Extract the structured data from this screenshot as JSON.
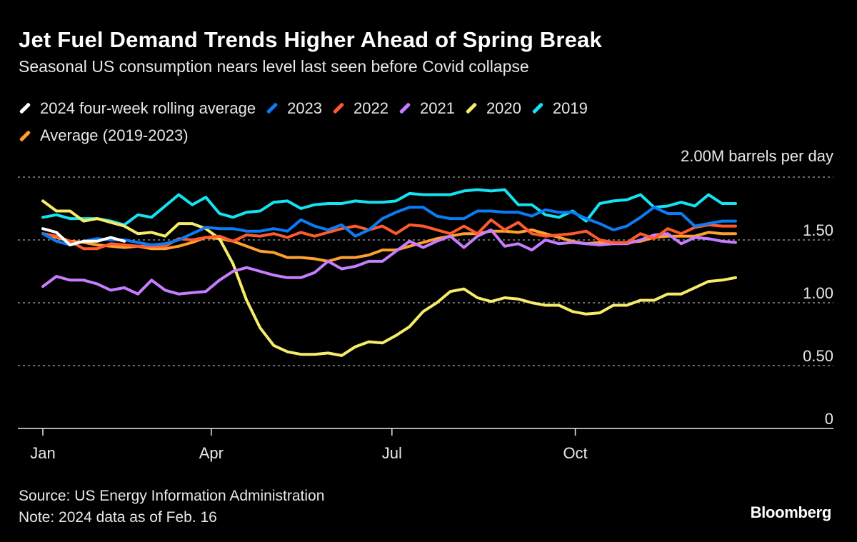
{
  "header": {
    "title": "Jet Fuel Demand Trends Higher Ahead of Spring Break",
    "subtitle": "Seasonal US consumption nears level last seen before Covid collapse"
  },
  "footer": {
    "source": "Source: US Energy Information Administration",
    "note": "Note: 2024 data as of Feb. 16",
    "logo": "Bloomberg"
  },
  "chart_data": {
    "type": "line",
    "title": "Jet Fuel Demand Trends Higher Ahead of Spring Break",
    "subtitle": "Seasonal US consumption nears level last seen before Covid collapse",
    "unit_label": "2.00M barrels per day",
    "ylim": [
      0,
      2.0
    ],
    "y_ticks": [
      {
        "value": 0,
        "label": "0"
      },
      {
        "value": 0.5,
        "label": "0.50"
      },
      {
        "value": 1.0,
        "label": "1.00"
      },
      {
        "value": 1.5,
        "label": "1.50"
      }
    ],
    "x_ticks": [
      {
        "week": 1,
        "label": "Jan"
      },
      {
        "week": 13.4,
        "label": "Apr"
      },
      {
        "week": 26.7,
        "label": "Jul"
      },
      {
        "week": 40.2,
        "label": "Oct"
      }
    ],
    "xlim": [
      1,
      52
    ],
    "grid": "horizontal dotted",
    "legend_position": "top",
    "series": [
      {
        "name": "2024 four-week rolling average",
        "color": "#ffffff",
        "values": [
          1.59,
          1.56,
          1.46,
          1.49,
          1.49,
          1.52,
          1.49
        ]
      },
      {
        "name": "2023",
        "color": "#0a7cf5",
        "values": [
          1.55,
          1.49,
          1.46,
          1.49,
          1.51,
          1.5,
          1.5,
          1.48,
          1.46,
          1.47,
          1.5,
          1.55,
          1.6,
          1.59,
          1.59,
          1.57,
          1.57,
          1.59,
          1.57,
          1.66,
          1.61,
          1.58,
          1.62,
          1.53,
          1.58,
          1.67,
          1.72,
          1.76,
          1.76,
          1.69,
          1.67,
          1.67,
          1.73,
          1.73,
          1.72,
          1.72,
          1.69,
          1.74,
          1.72,
          1.72,
          1.67,
          1.63,
          1.58,
          1.61,
          1.68,
          1.76,
          1.71,
          1.71,
          1.61,
          1.63,
          1.65,
          1.65
        ]
      },
      {
        "name": "2022",
        "color": "#ff5a2e",
        "values": [
          1.55,
          1.53,
          1.49,
          1.43,
          1.43,
          1.47,
          1.46,
          1.45,
          1.45,
          1.45,
          1.51,
          1.5,
          1.52,
          1.53,
          1.49,
          1.54,
          1.53,
          1.55,
          1.52,
          1.56,
          1.53,
          1.56,
          1.59,
          1.61,
          1.58,
          1.61,
          1.55,
          1.62,
          1.61,
          1.58,
          1.55,
          1.61,
          1.55,
          1.66,
          1.58,
          1.64,
          1.55,
          1.53,
          1.54,
          1.55,
          1.57,
          1.5,
          1.48,
          1.48,
          1.55,
          1.51,
          1.59,
          1.55,
          1.6,
          1.62,
          1.61,
          1.61
        ]
      },
      {
        "name": "2021",
        "color": "#c77dff",
        "values": [
          1.13,
          1.21,
          1.18,
          1.18,
          1.15,
          1.1,
          1.12,
          1.07,
          1.18,
          1.1,
          1.07,
          1.08,
          1.09,
          1.18,
          1.25,
          1.28,
          1.25,
          1.22,
          1.2,
          1.2,
          1.24,
          1.33,
          1.27,
          1.29,
          1.33,
          1.33,
          1.41,
          1.49,
          1.44,
          1.49,
          1.53,
          1.44,
          1.53,
          1.58,
          1.45,
          1.47,
          1.42,
          1.5,
          1.47,
          1.48,
          1.47,
          1.46,
          1.47,
          1.47,
          1.5,
          1.54,
          1.55,
          1.47,
          1.52,
          1.51,
          1.49,
          1.48
        ]
      },
      {
        "name": "2020",
        "color": "#f5ec6a",
        "values": [
          1.81,
          1.73,
          1.73,
          1.65,
          1.67,
          1.64,
          1.61,
          1.55,
          1.56,
          1.53,
          1.63,
          1.63,
          1.59,
          1.51,
          1.31,
          1.02,
          0.8,
          0.66,
          0.61,
          0.59,
          0.59,
          0.6,
          0.58,
          0.65,
          0.69,
          0.68,
          0.74,
          0.81,
          0.93,
          1.0,
          1.09,
          1.11,
          1.04,
          1.01,
          1.04,
          1.03,
          1.0,
          0.98,
          0.98,
          0.93,
          0.91,
          0.92,
          0.98,
          0.98,
          1.02,
          1.02,
          1.07,
          1.07,
          1.12,
          1.17,
          1.18,
          1.2
        ]
      },
      {
        "name": "2019",
        "color": "#13e3f2",
        "values": [
          1.68,
          1.7,
          1.67,
          1.67,
          1.67,
          1.65,
          1.62,
          1.7,
          1.68,
          1.77,
          1.86,
          1.78,
          1.84,
          1.71,
          1.68,
          1.72,
          1.73,
          1.8,
          1.81,
          1.75,
          1.78,
          1.79,
          1.79,
          1.81,
          1.8,
          1.8,
          1.81,
          1.87,
          1.86,
          1.86,
          1.86,
          1.89,
          1.9,
          1.89,
          1.9,
          1.78,
          1.78,
          1.7,
          1.68,
          1.73,
          1.65,
          1.79,
          1.81,
          1.82,
          1.86,
          1.76,
          1.77,
          1.8,
          1.77,
          1.86,
          1.79,
          1.79
        ]
      },
      {
        "name": "Average (2019-2023)",
        "color": "#ff9f2e",
        "values": [
          1.55,
          1.52,
          1.49,
          1.48,
          1.46,
          1.45,
          1.44,
          1.45,
          1.43,
          1.43,
          1.45,
          1.48,
          1.52,
          1.51,
          1.49,
          1.45,
          1.41,
          1.4,
          1.36,
          1.36,
          1.35,
          1.33,
          1.36,
          1.36,
          1.38,
          1.42,
          1.42,
          1.45,
          1.48,
          1.51,
          1.53,
          1.55,
          1.55,
          1.57,
          1.57,
          1.56,
          1.58,
          1.55,
          1.52,
          1.49,
          1.47,
          1.48,
          1.47,
          1.48,
          1.49,
          1.52,
          1.53,
          1.53,
          1.53,
          1.56,
          1.55,
          1.55
        ]
      }
    ]
  }
}
